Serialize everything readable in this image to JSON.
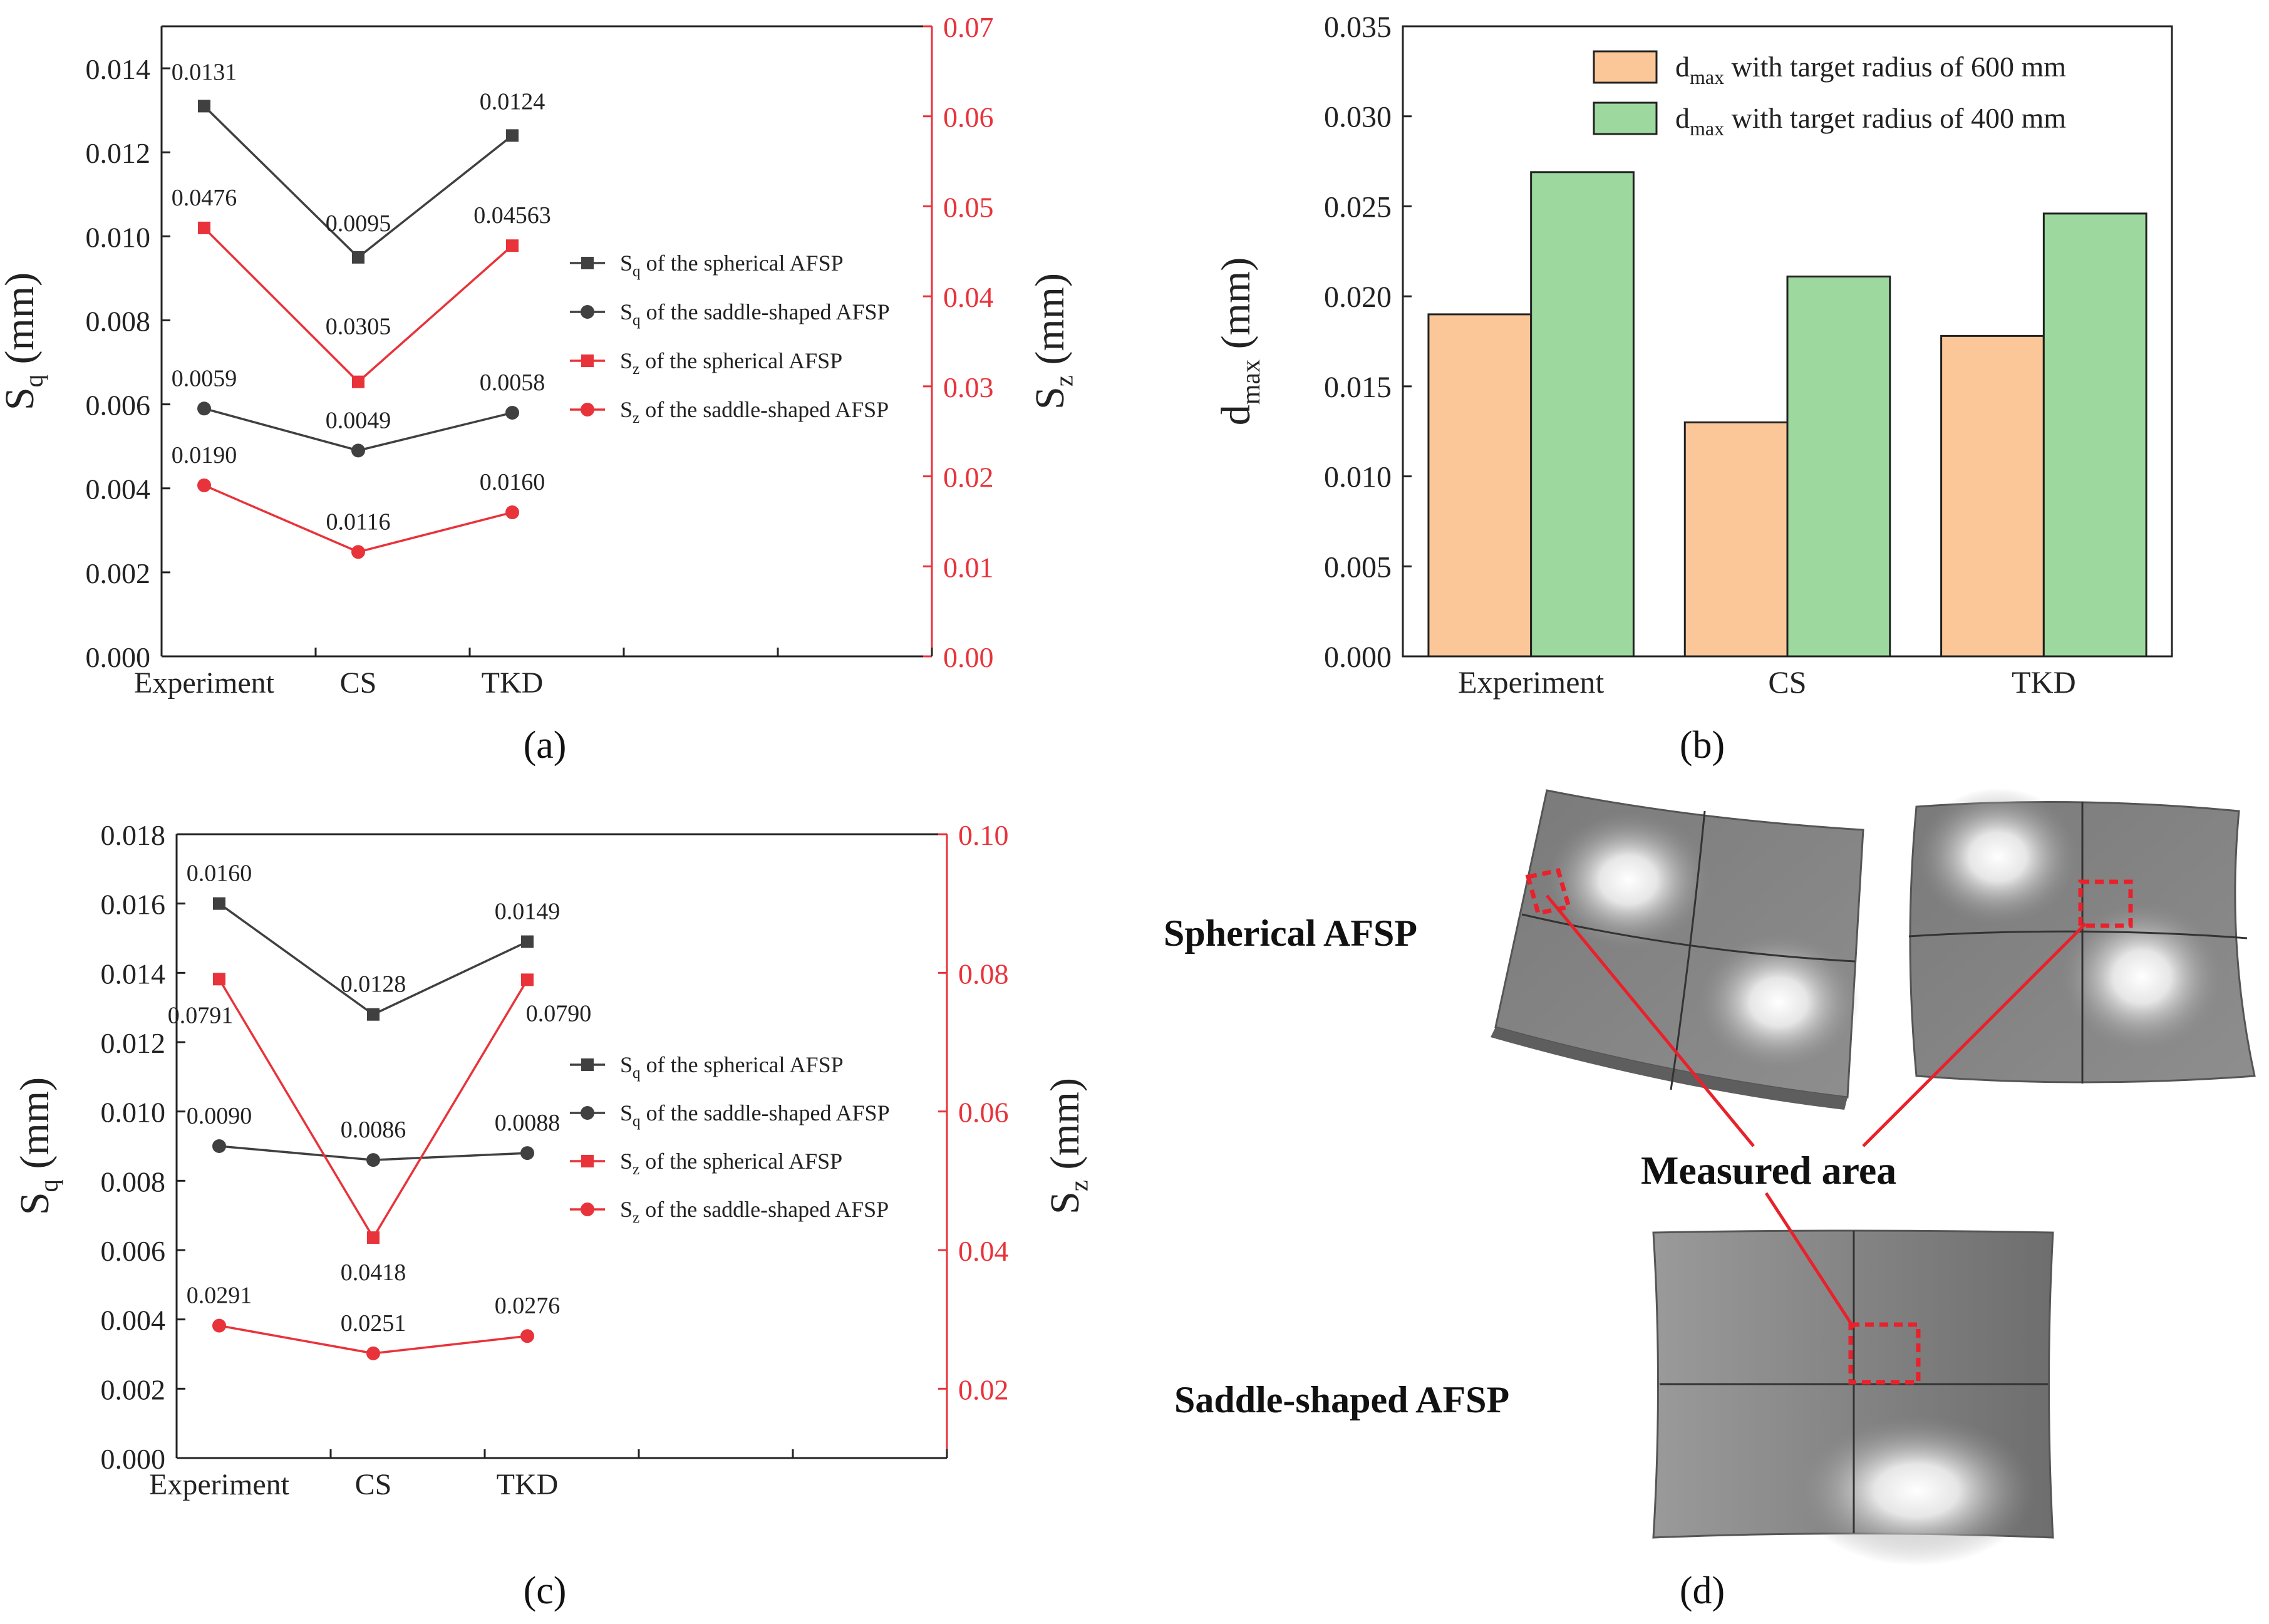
{
  "figure": {
    "captions": {
      "a": "(a)",
      "b": "(b)",
      "c": "(c)",
      "d": "(d)"
    }
  },
  "chart_data": [
    {
      "id": "a",
      "type": "line",
      "categories": [
        "Experiment",
        "CS",
        "TKD"
      ],
      "xlabel": "",
      "ylabel_left": "Sq (mm)",
      "ylabel_right": "Sz (mm)",
      "ylim_left": [
        0,
        0.015
      ],
      "yticks_left": [
        "0.000",
        "0.002",
        "0.004",
        "0.006",
        "0.008",
        "0.010",
        "0.012",
        "0.014"
      ],
      "ylim_right": [
        0,
        0.07
      ],
      "yticks_right": [
        "0.00",
        "0.01",
        "0.02",
        "0.03",
        "0.04",
        "0.05",
        "0.06",
        "0.07"
      ],
      "x_slots": 5,
      "series": [
        {
          "name": "Sq of the spherical AFSP",
          "axis": "left",
          "marker": "square",
          "color": "#404040",
          "values": [
            0.0131,
            0.0095,
            0.0124
          ],
          "labels": [
            "0.0131",
            "0.0095",
            "0.0124"
          ]
        },
        {
          "name": "Sq of the saddle-shaped AFSP",
          "axis": "left",
          "marker": "circle",
          "color": "#404040",
          "values": [
            0.0059,
            0.0049,
            0.0058
          ],
          "labels": [
            "0.0059",
            "0.0049",
            "0.0058"
          ]
        },
        {
          "name": "Sz of the spherical AFSP",
          "axis": "right",
          "marker": "square",
          "color": "#e8333a",
          "values": [
            0.0476,
            0.0305,
            0.04563
          ],
          "labels": [
            "0.0476",
            "0.0305",
            "0.04563"
          ]
        },
        {
          "name": "Sz of the saddle-shaped AFSP",
          "axis": "right",
          "marker": "circle",
          "color": "#e8333a",
          "values": [
            0.019,
            0.0116,
            0.016
          ],
          "labels": [
            "0.0190",
            "0.0116",
            "0.0160"
          ]
        }
      ]
    },
    {
      "id": "b",
      "type": "bar",
      "categories": [
        "Experiment",
        "CS",
        "TKD"
      ],
      "xlabel": "",
      "ylabel": "dmax (mm)",
      "ylim": [
        0,
        0.035
      ],
      "yticks": [
        "0.000",
        "0.005",
        "0.010",
        "0.015",
        "0.020",
        "0.025",
        "0.030",
        "0.035"
      ],
      "series": [
        {
          "name": "dmax with target radius of 600 mm",
          "color": "#fbc698",
          "values": [
            0.019,
            0.013,
            0.0178
          ]
        },
        {
          "name": "dmax with target radius of 400 mm",
          "color": "#9dd89e",
          "values": [
            0.0269,
            0.0211,
            0.0246
          ]
        }
      ]
    },
    {
      "id": "c",
      "type": "line",
      "categories": [
        "Experiment",
        "CS",
        "TKD"
      ],
      "xlabel": "",
      "ylabel_left": "Sq (mm)",
      "ylabel_right": "Sz (mm)",
      "ylim_left": [
        0,
        0.018
      ],
      "yticks_left": [
        "0.000",
        "0.002",
        "0.004",
        "0.006",
        "0.008",
        "0.010",
        "0.012",
        "0.014",
        "0.016",
        "0.018"
      ],
      "ylim_right": [
        0.01,
        0.1
      ],
      "yticks_right": [
        "0.02",
        "0.04",
        "0.06",
        "0.08",
        "0.10"
      ],
      "x_slots": 5,
      "series": [
        {
          "name": "Sq of the spherical AFSP",
          "axis": "left",
          "marker": "square",
          "color": "#404040",
          "values": [
            0.016,
            0.0128,
            0.0149
          ],
          "labels": [
            "0.0160",
            "0.0128",
            "0.0149"
          ]
        },
        {
          "name": "Sq of the saddle-shaped AFSP",
          "axis": "left",
          "marker": "circle",
          "color": "#404040",
          "values": [
            0.009,
            0.0086,
            0.0088
          ],
          "labels": [
            "0.0090",
            "0.0086",
            "0.0088"
          ]
        },
        {
          "name": "Sz of the spherical AFSP",
          "axis": "right",
          "marker": "square",
          "color": "#e8333a",
          "values": [
            0.0791,
            0.0418,
            0.079
          ],
          "labels": [
            "0.0791",
            "0.0418",
            "0.0790"
          ]
        },
        {
          "name": "Sz of the saddle-shaped AFSP",
          "axis": "right",
          "marker": "circle",
          "color": "#e8333a",
          "values": [
            0.0291,
            0.0251,
            0.0276
          ],
          "labels": [
            "0.0291",
            "0.0251",
            "0.0276"
          ]
        }
      ]
    }
  ],
  "panel_d": {
    "spherical_label": "Spherical AFSP",
    "saddle_label": "Saddle-shaped AFSP",
    "measured_label": "Measured area",
    "highlight_color": "#e8212b"
  }
}
